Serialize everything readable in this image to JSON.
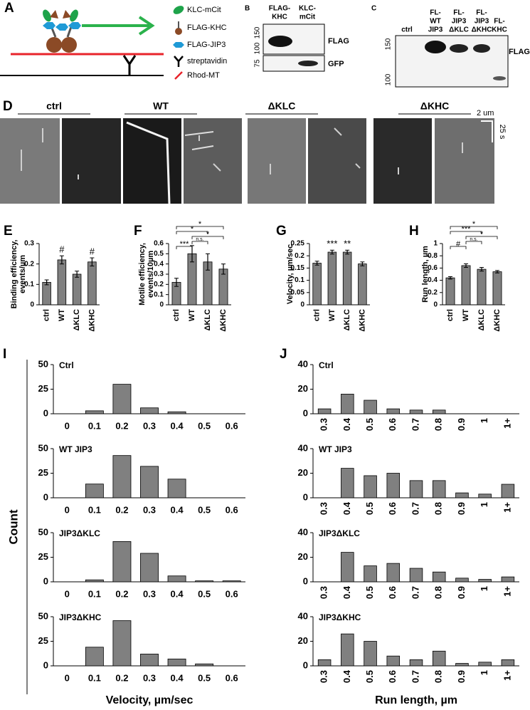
{
  "figure_a": {
    "label": "A",
    "legend": [
      "KLC-mCit",
      "FLAG-KHC",
      "FLAG-JIP3",
      "streptavidin",
      "Rhod-MT"
    ]
  },
  "figure_b": {
    "label": "B",
    "lanes": [
      [
        "FLAG-",
        "KHC"
      ],
      [
        "KLC-",
        "mCit"
      ]
    ],
    "markers": [
      "150",
      "100",
      "75"
    ],
    "blots": [
      "FLAG",
      "GFP"
    ]
  },
  "figure_c": {
    "label": "C",
    "lanes": [
      [
        "ctrl"
      ],
      [
        "FL-",
        "WT",
        "JIP3"
      ],
      [
        "FL-",
        "JIP3",
        "ΔKLC"
      ],
      [
        "FL-",
        "JIP3",
        "ΔKHC"
      ],
      [
        "FL-",
        "KHC"
      ]
    ],
    "markers": [
      "150",
      "100"
    ],
    "blot": "FLAG"
  },
  "figure_d": {
    "label": "D",
    "conditions": [
      "ctrl",
      "WT",
      "ΔKLC",
      "ΔKHC"
    ],
    "scale_x": "2 um",
    "scale_y": "25 s"
  },
  "figure_i": {
    "label": "I",
    "ylabel": "Count",
    "xlabel": "Velocity, µm/sec"
  },
  "figure_j": {
    "label": "J",
    "xlabel": "Run length, µm"
  },
  "chart_data": [
    {
      "type": "bar",
      "panel": "E",
      "ylabel": [
        "Binding efficiency,",
        "events/µm"
      ],
      "categories": [
        "ctrl",
        "WT",
        "ΔKLC",
        "ΔKHC"
      ],
      "values": [
        0.11,
        0.22,
        0.15,
        0.21
      ],
      "errors": [
        0.012,
        0.02,
        0.015,
        0.02
      ],
      "color": "#808080",
      "ylim": [
        0,
        0.3
      ],
      "yticks": [
        0,
        0.1,
        0.2,
        0.3
      ],
      "annotations": [
        {
          "text": "#",
          "category": "WT"
        },
        {
          "text": "#",
          "category": "ΔKHC"
        }
      ]
    },
    {
      "type": "bar",
      "panel": "F",
      "ylabel": [
        "Motile efficiency,",
        "events/10µm"
      ],
      "categories": [
        "ctrl",
        "WT",
        "ΔKLC",
        "ΔKHC"
      ],
      "values": [
        0.22,
        0.5,
        0.42,
        0.35
      ],
      "errors": [
        0.04,
        0.08,
        0.08,
        0.05
      ],
      "color": "#808080",
      "ylim": [
        0,
        0.6
      ],
      "yticks": [
        0,
        0.1,
        0.2,
        0.3,
        0.4,
        0.5,
        0.6
      ],
      "annotations": [
        {
          "text": "***",
          "between": [
            "ctrl",
            "WT"
          ]
        },
        {
          "text": "n.s.",
          "between": [
            "WT",
            "ΔKLC"
          ]
        },
        {
          "text": "*",
          "between": [
            "WT",
            "ΔKHC"
          ]
        },
        {
          "text": "*",
          "between": [
            "ctrl",
            "ΔKLC"
          ]
        },
        {
          "text": "*",
          "between": [
            "ctrl",
            "ΔKHC"
          ]
        }
      ]
    },
    {
      "type": "bar",
      "panel": "G",
      "ylabel": [
        "Velocity, µm/sec"
      ],
      "categories": [
        "ctrl",
        "WT",
        "ΔKLC",
        "ΔKHC"
      ],
      "values": [
        0.17,
        0.215,
        0.215,
        0.167
      ],
      "errors": [
        0.008,
        0.008,
        0.008,
        0.008
      ],
      "color": "#808080",
      "ylim": [
        0,
        0.25
      ],
      "yticks": [
        0,
        0.05,
        0.1,
        0.15,
        0.2,
        0.25
      ],
      "annotations": [
        {
          "text": "***",
          "category": "WT"
        },
        {
          "text": "**",
          "category": "ΔKLC"
        }
      ]
    },
    {
      "type": "bar",
      "panel": "H",
      "ylabel": [
        "Run length, µm"
      ],
      "categories": [
        "ctrl",
        "WT",
        "ΔKLC",
        "ΔKHC"
      ],
      "values": [
        0.44,
        0.64,
        0.58,
        0.54
      ],
      "errors": [
        0.02,
        0.03,
        0.03,
        0.02
      ],
      "color": "#808080",
      "ylim": [
        0,
        1
      ],
      "yticks": [
        0,
        0.2,
        0.4,
        0.6,
        0.8,
        1
      ],
      "annotations": [
        {
          "text": "#",
          "between": [
            "ctrl",
            "WT"
          ]
        },
        {
          "text": "n.s.",
          "between": [
            "WT",
            "ΔKLC"
          ]
        },
        {
          "text": "*",
          "between": [
            "WT",
            "ΔKHC"
          ]
        },
        {
          "text": "***",
          "between": [
            "ctrl",
            "ΔKLC"
          ]
        },
        {
          "text": "*",
          "between": [
            "ctrl",
            "ΔKHC"
          ]
        }
      ]
    },
    {
      "type": "bar",
      "title": "Ctrl",
      "categories": [
        "0",
        "0.1",
        "0.2",
        "0.3",
        "0.4",
        "0.5",
        "0.6"
      ],
      "values": [
        0,
        3,
        30,
        6,
        2,
        0,
        0
      ],
      "color": "#808080",
      "ylim": [
        0,
        50
      ],
      "yticks": [
        0,
        25,
        50
      ]
    },
    {
      "type": "bar",
      "title": "WT JIP3",
      "categories": [
        "0",
        "0.1",
        "0.2",
        "0.3",
        "0.4",
        "0.5",
        "0.6"
      ],
      "values": [
        0,
        14,
        43,
        32,
        19,
        0,
        0
      ],
      "color": "#808080",
      "ylim": [
        0,
        50
      ],
      "yticks": [
        0,
        25,
        50
      ]
    },
    {
      "type": "bar",
      "title": "JIP3ΔKLC",
      "categories": [
        "0",
        "0.1",
        "0.2",
        "0.3",
        "0.4",
        "0.5",
        "0.6"
      ],
      "values": [
        0,
        2,
        41,
        29,
        6,
        1,
        1
      ],
      "color": "#808080",
      "ylim": [
        0,
        50
      ],
      "yticks": [
        0,
        25,
        50
      ]
    },
    {
      "type": "bar",
      "title": "JIP3ΔKHC",
      "categories": [
        "0",
        "0.1",
        "0.2",
        "0.3",
        "0.4",
        "0.5",
        "0.6"
      ],
      "values": [
        0,
        19,
        46,
        12,
        7,
        2,
        0
      ],
      "color": "#808080",
      "ylim": [
        0,
        50
      ],
      "yticks": [
        0,
        25,
        50
      ]
    },
    {
      "type": "bar",
      "title": "Ctrl",
      "categories": [
        "0.3",
        "0.4",
        "0.5",
        "0.6",
        "0.7",
        "0.8",
        "0.9",
        "1",
        "1+"
      ],
      "values": [
        4,
        16,
        11,
        4,
        3,
        3,
        0,
        0,
        0
      ],
      "color": "#808080",
      "ylim": [
        0,
        40
      ],
      "yticks": [
        0,
        20,
        40
      ]
    },
    {
      "type": "bar",
      "title": "WT JIP3",
      "categories": [
        "0.3",
        "0.4",
        "0.5",
        "0.6",
        "0.7",
        "0.8",
        "0.9",
        "1",
        "1+"
      ],
      "values": [
        0,
        24,
        18,
        20,
        14,
        14,
        4,
        3,
        11
      ],
      "color": "#808080",
      "ylim": [
        0,
        40
      ],
      "yticks": [
        0,
        20,
        40
      ]
    },
    {
      "type": "bar",
      "title": "JIP3ΔKLC",
      "categories": [
        "0.3",
        "0.4",
        "0.5",
        "0.6",
        "0.7",
        "0.8",
        "0.9",
        "1",
        "1+"
      ],
      "values": [
        0,
        24,
        13,
        15,
        11,
        8,
        3,
        2,
        4
      ],
      "color": "#808080",
      "ylim": [
        0,
        40
      ],
      "yticks": [
        0,
        20,
        40
      ]
    },
    {
      "type": "bar",
      "title": "JIP3ΔKHC",
      "categories": [
        "0.3",
        "0.4",
        "0.5",
        "0.6",
        "0.7",
        "0.8",
        "0.9",
        "1",
        "1+"
      ],
      "values": [
        5,
        26,
        20,
        8,
        5,
        12,
        2,
        3,
        5
      ],
      "color": "#808080",
      "ylim": [
        0,
        40
      ],
      "yticks": [
        0,
        20,
        40
      ]
    }
  ]
}
